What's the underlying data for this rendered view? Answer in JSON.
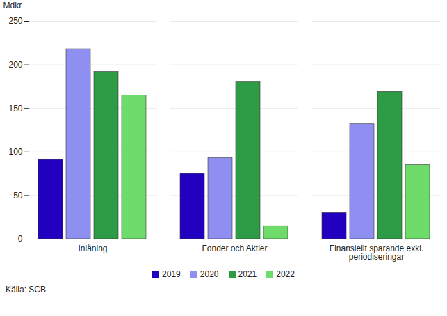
{
  "chart_data": {
    "type": "bar",
    "y_label": "Mdkr",
    "caption": "Källa: SCB",
    "categories": [
      "Inlåning",
      "Fonder och Aktier",
      "Finansiellt sparande exkl. periodiseringar"
    ],
    "series": [
      {
        "name": "2019",
        "color": "#2200c0",
        "values": [
          91,
          75,
          30
        ]
      },
      {
        "name": "2020",
        "color": "#8f8ff2",
        "values": [
          218,
          93,
          132
        ]
      },
      {
        "name": "2021",
        "color": "#2e9b46",
        "values": [
          192,
          180,
          169
        ]
      },
      {
        "name": "2022",
        "color": "#6edb6a",
        "values": [
          165,
          15,
          85
        ]
      }
    ],
    "ylim": [
      0,
      250
    ],
    "yticks": [
      0,
      50,
      100,
      150,
      200,
      250
    ],
    "grid": true,
    "legend": "bottom"
  }
}
